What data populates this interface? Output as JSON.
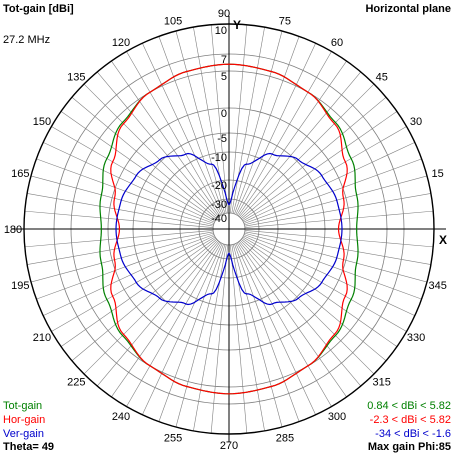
{
  "header": {
    "title": "Tot-gain [dBi]",
    "plane": "Horizontal plane",
    "frequency": "27.2 MHz"
  },
  "footer": {
    "theta": "Theta= 49",
    "max_gain": "Max gain Phi:85"
  },
  "axis_letters": {
    "y": "Y",
    "x": "X"
  },
  "colors": {
    "background": "#ffffff",
    "grid": "#808080",
    "axes": "#000000",
    "tot": "#008000",
    "hor": "#ff0000",
    "ver": "#0000cc"
  },
  "chart_data": {
    "type": "line",
    "subtype": "polar",
    "title": "Tot-gain [dBi]",
    "angle_ticks": [
      0,
      15,
      30,
      45,
      60,
      75,
      90,
      105,
      120,
      135,
      150,
      165,
      180,
      195,
      210,
      225,
      240,
      255,
      270,
      285,
      300,
      315,
      330,
      345
    ],
    "angle_tick_labels": [
      "",
      "15",
      "30",
      "45",
      "60",
      "75",
      "90",
      "105",
      "120",
      "135",
      "150",
      "165",
      "180",
      "195",
      "210",
      "225",
      "240",
      "255",
      "270",
      "285",
      "300",
      "315",
      "330",
      "345"
    ],
    "radial_ticks": [
      10,
      7,
      5,
      0,
      -5,
      -10,
      -20,
      -30,
      -40
    ],
    "radial_tick_labels": [
      "10",
      "7",
      "5",
      "0",
      "-5",
      "-10",
      "-20",
      "-30",
      "-40"
    ],
    "radial_range_dbi": [
      -40,
      10
    ],
    "legend_position": "bottom",
    "legend": [
      {
        "name": "Tot-gain",
        "range": "0.84 < dBi < 5.82"
      },
      {
        "name": "Hor-gain",
        "range": "-2.3 < dBi < 5.82"
      },
      {
        "name": "Ver-gain",
        "range": "-34 < dBi < -1.6"
      }
    ],
    "series": [
      {
        "name": "Tot-gain",
        "angles_deg": [
          0,
          15,
          30,
          45,
          60,
          75,
          90,
          105,
          120,
          135,
          150,
          165,
          180,
          195,
          210,
          225,
          240,
          255,
          270,
          285,
          300,
          315,
          330,
          345
        ],
        "values_dbi": [
          0.9,
          1.5,
          2.7,
          4,
          5,
          5.6,
          5.8,
          5.6,
          5,
          4,
          2.7,
          1.5,
          0.9,
          1.5,
          2.7,
          4,
          5,
          5.6,
          5.8,
          5.6,
          5,
          4,
          2.7,
          1.5
        ]
      },
      {
        "name": "Hor-gain",
        "angles_deg": [
          0,
          15,
          30,
          45,
          60,
          75,
          90,
          105,
          120,
          135,
          150,
          165,
          180,
          195,
          210,
          225,
          240,
          255,
          270,
          285,
          300,
          315,
          330,
          345
        ],
        "values_dbi": [
          -2.3,
          -0.5,
          1.8,
          3.8,
          5,
          5.6,
          5.8,
          5.6,
          5,
          3.8,
          1.8,
          -0.5,
          -2.3,
          -0.5,
          1.8,
          3.8,
          5,
          5.6,
          5.8,
          5.6,
          5,
          3.8,
          1.8,
          -0.5
        ]
      },
      {
        "name": "Ver-gain",
        "angles_deg": [
          0,
          15,
          30,
          45,
          60,
          75,
          90,
          105,
          120,
          135,
          150,
          165,
          180,
          195,
          210,
          225,
          240,
          255,
          270,
          285,
          300,
          315,
          330,
          345
        ],
        "values_dbi": [
          -1.6,
          -1.9,
          -2.8,
          -4.6,
          -7.5,
          -13.5,
          -34,
          -13.5,
          -7.5,
          -4.6,
          -2.8,
          -1.9,
          -1.6,
          -1.9,
          -2.8,
          -4.6,
          -7.5,
          -13.5,
          -34,
          -13.5,
          -7.5,
          -4.6,
          -2.8,
          -1.9
        ]
      }
    ]
  }
}
